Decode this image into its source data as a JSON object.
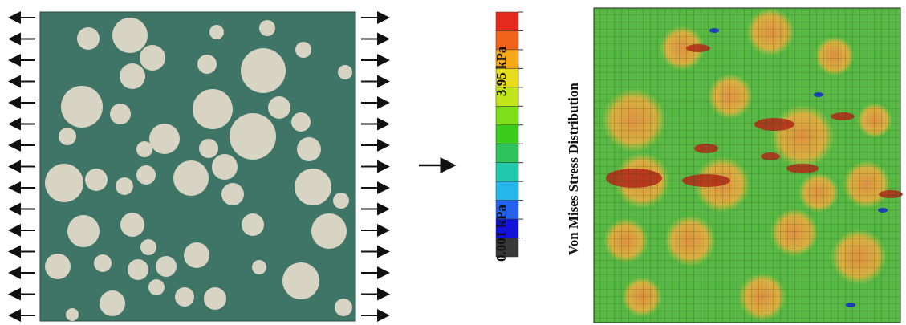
{
  "colorbar": {
    "max_label": "3.95 kPa",
    "min_label": "0.001 kPa",
    "title": "Von Mises Stress Distribution"
  }
}
